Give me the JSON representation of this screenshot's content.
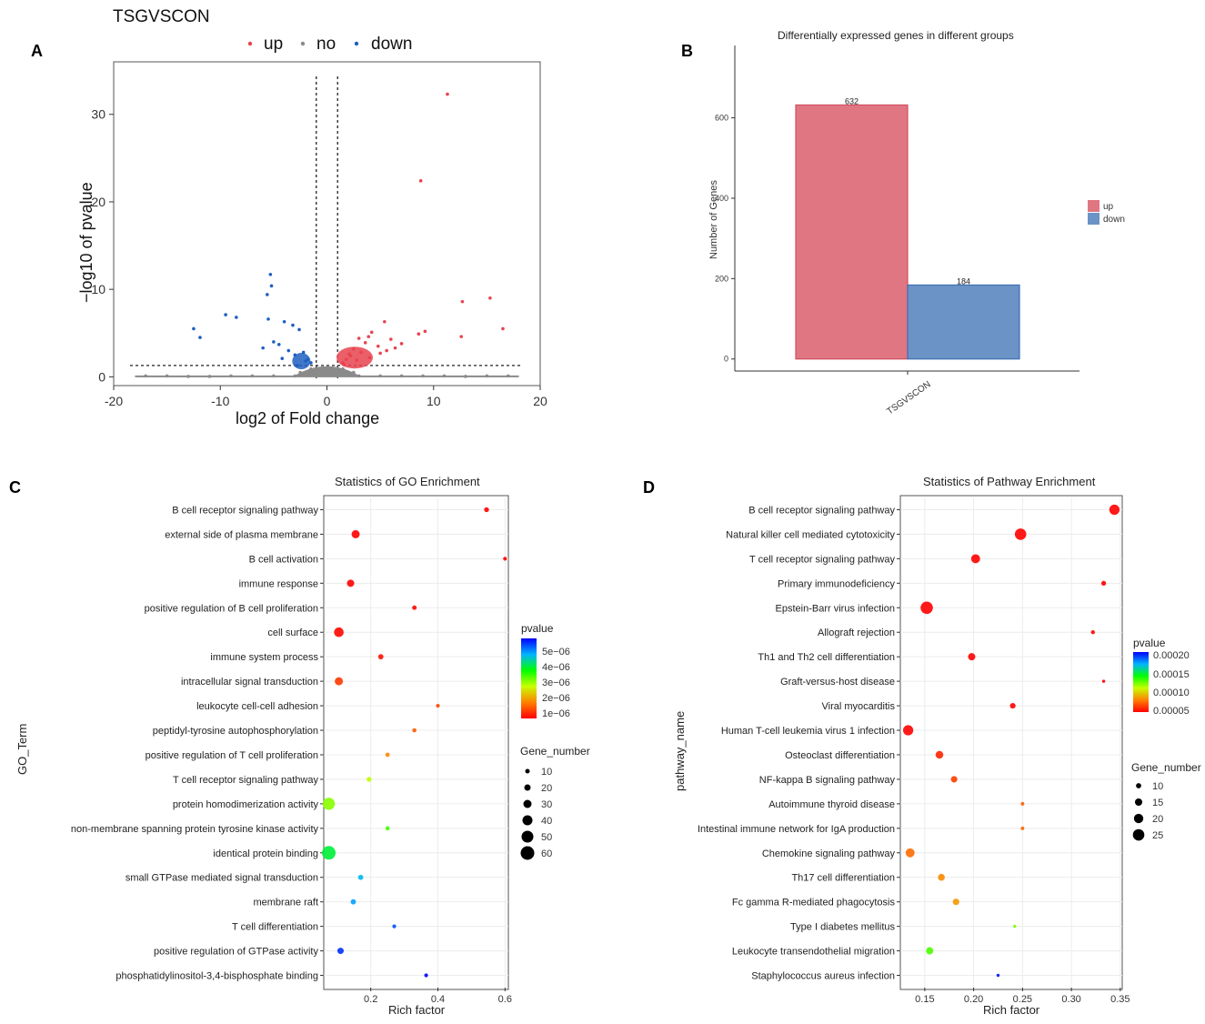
{
  "panels": {
    "A": {
      "label": "A"
    },
    "B": {
      "label": "B"
    },
    "C": {
      "label": "C"
    },
    "D": {
      "label": "D"
    }
  },
  "chart_data": [
    {
      "id": "A",
      "type": "scatter",
      "title": "TSGVSCON",
      "xlabel": "log2 of Fold change",
      "ylabel": "−log10 of pvalue",
      "xlim": [
        -20,
        20
      ],
      "ylim": [
        -1,
        36
      ],
      "xticks": [
        -20,
        -10,
        0,
        10,
        20
      ],
      "yticks": [
        0,
        10,
        20,
        30
      ],
      "thresholds": {
        "log2fc": [
          -1,
          1
        ],
        "neglog10p": 1.3
      },
      "legend": [
        {
          "name": "up",
          "color": "#e8434f"
        },
        {
          "name": "no",
          "color": "#8a8a8a"
        },
        {
          "name": "down",
          "color": "#1f5fbf"
        }
      ],
      "series": [
        {
          "name": "up",
          "color": "#e8434f",
          "x": [
            11.3,
            8.8,
            12.7,
            15.3,
            16.5,
            12.6,
            5.4,
            8.6,
            9.2,
            6.0,
            7.0,
            4.2,
            3.6,
            3.0,
            2.5,
            2.1,
            1.8,
            1.5,
            3.2,
            4.8,
            5.6,
            6.4,
            4.0,
            2.8,
            3.9,
            2.2,
            1.6,
            5.0
          ],
          "y": [
            32.3,
            22.4,
            8.6,
            9.0,
            5.5,
            4.6,
            6.3,
            4.9,
            5.2,
            4.3,
            3.8,
            5.1,
            3.9,
            4.4,
            3.2,
            2.6,
            2.0,
            1.6,
            2.8,
            3.5,
            3.0,
            3.3,
            2.2,
            1.9,
            4.6,
            2.4,
            1.4,
            2.7
          ]
        },
        {
          "name": "no",
          "color": "#8a8a8a",
          "x": [
            -17,
            -15,
            -13,
            -11,
            -9,
            -7,
            -5,
            -3,
            -2,
            -1,
            0,
            1,
            2,
            3,
            5,
            7,
            9,
            11,
            13,
            15,
            17,
            -0.5,
            0.5,
            -1.5,
            1.5,
            -2.5,
            2.5
          ],
          "y": [
            0.1,
            0.1,
            0.05,
            0.05,
            0.1,
            0.1,
            0.1,
            0.1,
            0.3,
            0.6,
            0.9,
            0.6,
            0.3,
            0.1,
            0.1,
            0.1,
            0.1,
            0.1,
            0.05,
            0.1,
            0.1,
            1.0,
            1.0,
            0.9,
            0.9,
            0.5,
            0.5
          ]
        },
        {
          "name": "down",
          "color": "#1f5fbf",
          "x": [
            -5.3,
            -5.2,
            -5.6,
            -12.5,
            -11.9,
            -9.5,
            -8.5,
            -5.5,
            -4.0,
            -3.2,
            -2.6,
            -6.0,
            -4.5,
            -3.6,
            -2.2,
            -1.8,
            -1.5,
            -3.0,
            -2.0,
            -5.0,
            -4.2,
            -2.8
          ],
          "y": [
            11.7,
            10.4,
            9.4,
            5.5,
            4.5,
            7.1,
            6.8,
            6.6,
            6.3,
            5.9,
            5.4,
            3.3,
            3.7,
            3.0,
            2.8,
            2.0,
            1.6,
            2.5,
            1.8,
            4.0,
            2.1,
            1.3
          ]
        }
      ]
    },
    {
      "id": "B",
      "type": "bar",
      "title": "Differentially expressed genes in different groups",
      "xlabel": "",
      "ylabel": "Number of Genes",
      "categories": [
        "TSGVSCON"
      ],
      "ylim": [
        -30,
        780
      ],
      "yticks": [
        0,
        200,
        400,
        600
      ],
      "series": [
        {
          "name": "up",
          "color": "#e07681",
          "values": [
            632
          ]
        },
        {
          "name": "down",
          "color": "#6b93c6",
          "values": [
            184
          ]
        }
      ],
      "data_labels": [
        "632",
        "184"
      ],
      "legend": [
        {
          "name": "up",
          "color": "#e07681"
        },
        {
          "name": "down",
          "color": "#6b93c6"
        }
      ],
      "legend_position": "right"
    },
    {
      "id": "C",
      "type": "scatter",
      "title": "Statistics of GO Enrichment",
      "xlabel": "Rich factor",
      "ylabel": "GO_Term",
      "xlim": [
        0.06,
        0.61
      ],
      "xticks": [
        "0.2",
        "0.4",
        "0.6"
      ],
      "xtick_values": [
        0.2,
        0.4,
        0.6
      ],
      "color_legend": {
        "title": "pvalue",
        "ticks": [
          "5e−06",
          "4e−06",
          "3e−06",
          "2e−06",
          "1e−06"
        ],
        "max": 5.6e-06
      },
      "size_legend": {
        "title": "Gene_number",
        "values": [
          10,
          20,
          30,
          40,
          50,
          60
        ],
        "labels": [
          "10",
          "20",
          "30",
          "40",
          "50",
          "60"
        ]
      },
      "size_domain": [
        5,
        65
      ],
      "points": [
        {
          "term": "B cell receptor signaling pathway",
          "rich": 0.545,
          "genes": 12,
          "pvalue": 1e-09
        },
        {
          "term": "external side of plasma membrane",
          "rich": 0.155,
          "genes": 30,
          "pvalue": 2e-09
        },
        {
          "term": "B cell activation",
          "rich": 0.6,
          "genes": 6,
          "pvalue": 2e-09
        },
        {
          "term": "immune response",
          "rich": 0.14,
          "genes": 25,
          "pvalue": 1e-08
        },
        {
          "term": "positive regulation of B cell proliferation",
          "rich": 0.33,
          "genes": 10,
          "pvalue": 5e-08
        },
        {
          "term": "cell surface",
          "rich": 0.105,
          "genes": 38,
          "pvalue": 4e-08
        },
        {
          "term": "immune system process",
          "rich": 0.23,
          "genes": 14,
          "pvalue": 1.5e-07
        },
        {
          "term": "intracellular signal transduction",
          "rich": 0.105,
          "genes": 30,
          "pvalue": 5e-07
        },
        {
          "term": "leukocyte cell-cell adhesion",
          "rich": 0.4,
          "genes": 6,
          "pvalue": 6e-07
        },
        {
          "term": "peptidyl-tyrosine autophosphorylation",
          "rich": 0.33,
          "genes": 8,
          "pvalue": 8e-07
        },
        {
          "term": "positive regulation of T cell proliferation",
          "rich": 0.25,
          "genes": 9,
          "pvalue": 1.2e-06
        },
        {
          "term": "T cell receptor signaling pathway",
          "rich": 0.195,
          "genes": 12,
          "pvalue": 2.3e-06
        },
        {
          "term": "protein homodimerization activity",
          "rich": 0.075,
          "genes": 52,
          "pvalue": 2.6e-06
        },
        {
          "term": "non-membrane spanning protein tyrosine kinase activity",
          "rich": 0.25,
          "genes": 8,
          "pvalue": 3e-06
        },
        {
          "term": "identical protein binding",
          "rich": 0.075,
          "genes": 60,
          "pvalue": 3.6e-06
        },
        {
          "term": "small GTPase mediated signal transduction",
          "rich": 0.17,
          "genes": 14,
          "pvalue": 4.4e-06
        },
        {
          "term": "membrane raft",
          "rich": 0.148,
          "genes": 14,
          "pvalue": 4.6e-06
        },
        {
          "term": "T cell differentiation",
          "rich": 0.27,
          "genes": 6,
          "pvalue": 5.1e-06
        },
        {
          "term": "positive regulation of GTPase activity",
          "rich": 0.11,
          "genes": 20,
          "pvalue": 5.3e-06
        },
        {
          "term": "phosphatidylinositol-3,4-bisphosphate binding",
          "rich": 0.365,
          "genes": 6,
          "pvalue": 5.6e-06
        }
      ]
    },
    {
      "id": "D",
      "type": "scatter",
      "title": "Statistics of Pathway Enrichment",
      "xlabel": "Rich factor",
      "ylabel": "pathway_name",
      "xlim": [
        0.125,
        0.352
      ],
      "xticks": [
        "0.15",
        "0.20",
        "0.25",
        "0.30",
        "0.35"
      ],
      "xtick_values": [
        0.15,
        0.2,
        0.25,
        0.3,
        0.35
      ],
      "color_legend": {
        "title": "pvalue",
        "ticks": [
          "0.00020",
          "0.00015",
          "0.00010",
          "0.00005"
        ],
        "max": 0.00021
      },
      "size_legend": {
        "title": "Gene_number",
        "values": [
          10,
          15,
          20,
          25
        ],
        "labels": [
          "10",
          "15",
          "20",
          "25"
        ]
      },
      "size_domain": [
        4,
        28
      ],
      "points": [
        {
          "term": "B cell receptor signaling pathway",
          "rich": 0.344,
          "genes": 22,
          "pvalue": 1e-10
        },
        {
          "term": "Natural killer cell mediated cytotoxicity",
          "rich": 0.248,
          "genes": 25,
          "pvalue": 1e-09
        },
        {
          "term": "T cell receptor signaling pathway",
          "rich": 0.202,
          "genes": 19,
          "pvalue": 2e-09
        },
        {
          "term": "Primary immunodeficiency",
          "rich": 0.333,
          "genes": 9,
          "pvalue": 3e-09
        },
        {
          "term": "Epstein-Barr virus infection",
          "rich": 0.152,
          "genes": 27,
          "pvalue": 5e-09
        },
        {
          "term": "Allograft rejection",
          "rich": 0.322,
          "genes": 7,
          "pvalue": 8e-09
        },
        {
          "term": "Th1 and Th2 cell differentiation",
          "rich": 0.198,
          "genes": 15,
          "pvalue": 1e-08
        },
        {
          "term": "Graft-versus-host disease",
          "rich": 0.333,
          "genes": 5,
          "pvalue": 2e-08
        },
        {
          "term": "Viral myocarditis",
          "rich": 0.24,
          "genes": 11,
          "pvalue": 3e-08
        },
        {
          "term": "Human T-cell leukemia virus 1 infection",
          "rich": 0.133,
          "genes": 22,
          "pvalue": 5e-07
        },
        {
          "term": "Osteoclast differentiation",
          "rich": 0.165,
          "genes": 16,
          "pvalue": 1.2e-05
        },
        {
          "term": "NF-kappa B signaling pathway",
          "rich": 0.18,
          "genes": 13,
          "pvalue": 2e-05
        },
        {
          "term": "Autoimmune thyroid disease",
          "rich": 0.25,
          "genes": 6,
          "pvalue": 3e-05
        },
        {
          "term": "Intestinal immune network for IgA production",
          "rich": 0.25,
          "genes": 6,
          "pvalue": 3.2e-05
        },
        {
          "term": "Chemokine signaling pathway",
          "rich": 0.135,
          "genes": 19,
          "pvalue": 3.5e-05
        },
        {
          "term": "Th17 cell differentiation",
          "rich": 0.167,
          "genes": 14,
          "pvalue": 4.5e-05
        },
        {
          "term": "Fc gamma R-mediated phagocytosis",
          "rich": 0.182,
          "genes": 13,
          "pvalue": 5e-05
        },
        {
          "term": "Type I diabetes mellitus",
          "rich": 0.242,
          "genes": 5,
          "pvalue": 0.0001
        },
        {
          "term": "Leukocyte transendothelial migration",
          "rich": 0.155,
          "genes": 15,
          "pvalue": 0.00011
        },
        {
          "term": "Staphylococcus aureus infection",
          "rich": 0.225,
          "genes": 5,
          "pvalue": 0.000205
        }
      ]
    }
  ]
}
